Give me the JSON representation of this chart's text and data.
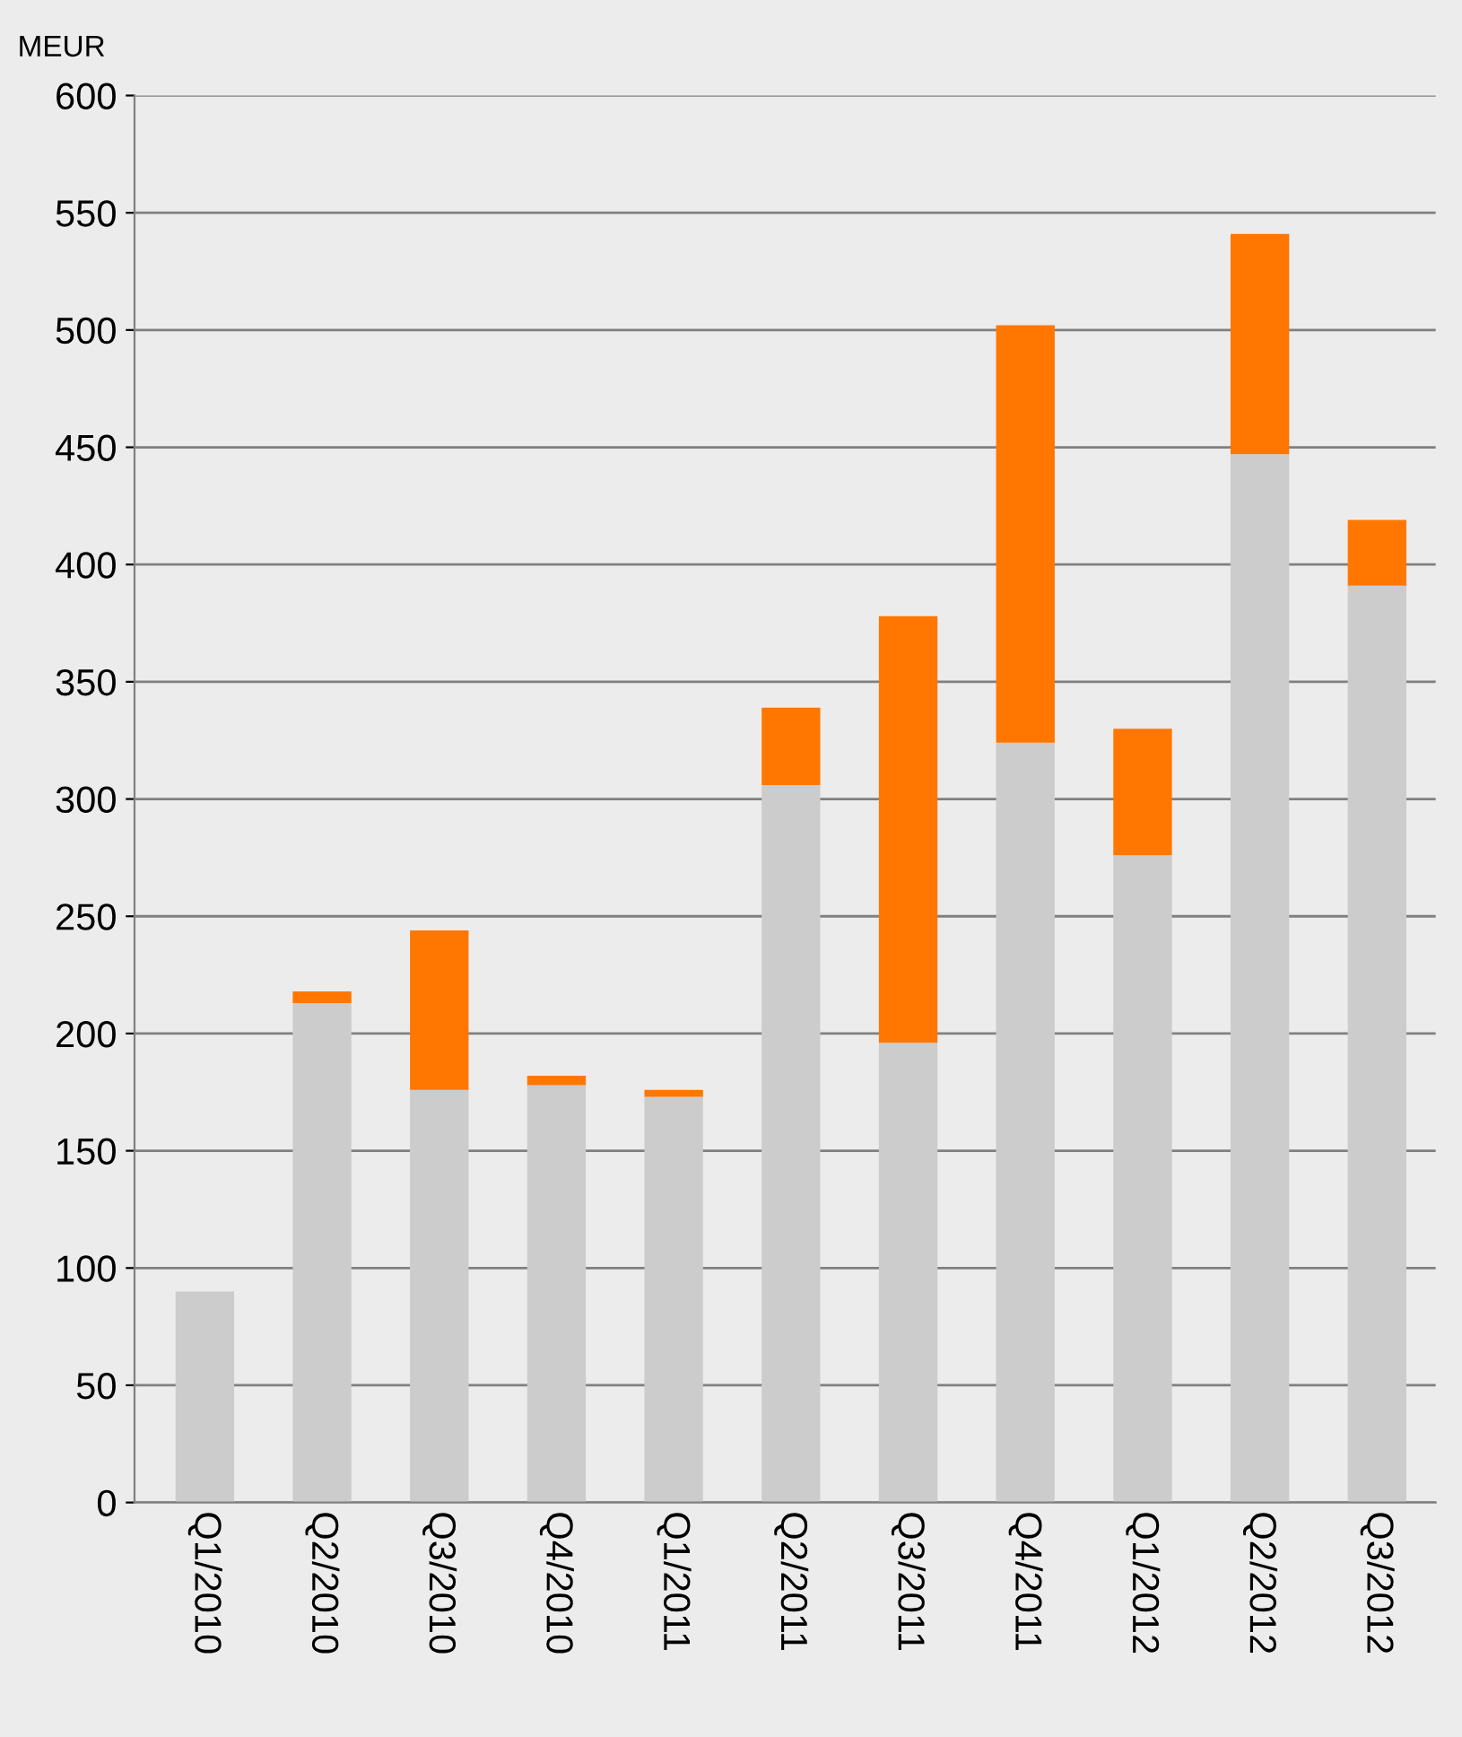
{
  "chart_data": {
    "type": "bar",
    "stacked": true,
    "ylabel": "MEUR",
    "categories": [
      "Q1/2010",
      "Q2/2010",
      "Q3/2010",
      "Q4/2010",
      "Q1/2011",
      "Q2/2011",
      "Q3/2011",
      "Q4/2011",
      "Q1/2012",
      "Q2/2012",
      "Q3/2012"
    ],
    "series": [
      {
        "color": "#cccccc",
        "values": [
          90,
          213,
          176,
          178,
          173,
          306,
          196,
          324,
          276,
          447,
          391
        ]
      },
      {
        "color": "#ff7700",
        "values": [
          0,
          5,
          68,
          4,
          3,
          33,
          182,
          178,
          54,
          94,
          28
        ]
      }
    ],
    "ylim": [
      0,
      600
    ],
    "yticks": [
      0,
      50,
      100,
      150,
      200,
      250,
      300,
      350,
      400,
      450,
      500,
      550,
      600
    ],
    "grid": "y",
    "legend": false
  }
}
